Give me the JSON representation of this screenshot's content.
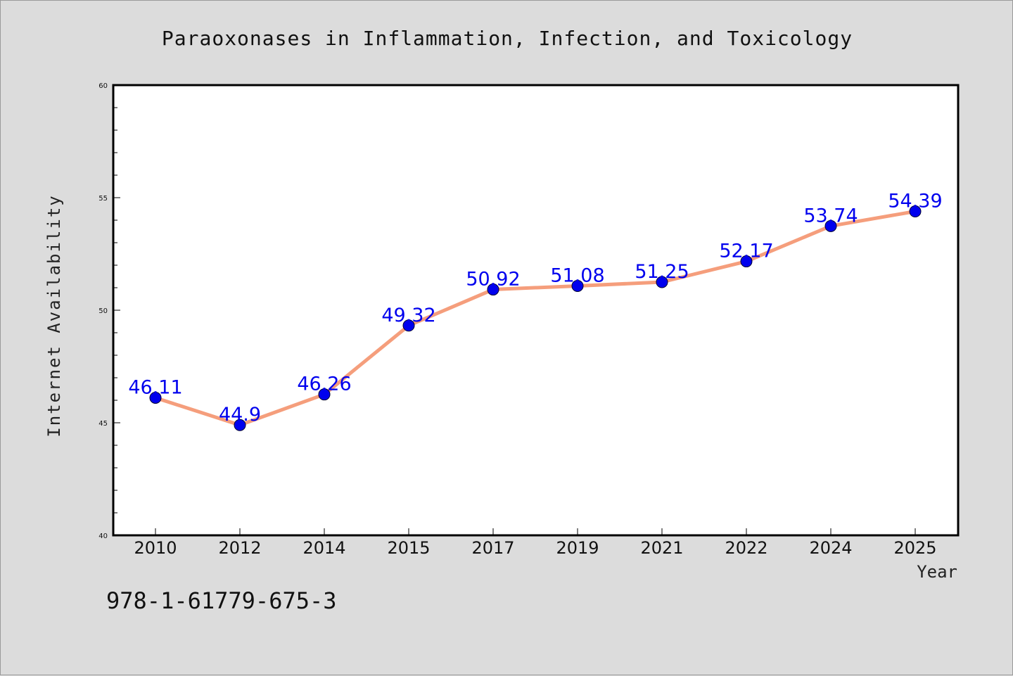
{
  "chart_data": {
    "type": "line",
    "title": "Paraoxonases in Inflammation, Infection, and Toxicology",
    "xlabel": "Year",
    "ylabel": "Internet Availability",
    "categories": [
      "2010",
      "2012",
      "2014",
      "2015",
      "2017",
      "2019",
      "2021",
      "2022",
      "2024",
      "2025"
    ],
    "series": [
      {
        "values": [
          46.11,
          44.9,
          46.26,
          49.32,
          50.92,
          51.08,
          51.25,
          52.17,
          53.74,
          54.39
        ],
        "labels": [
          "46.11",
          "44.9",
          "46.26",
          "49.32",
          "50.92",
          "51.08",
          "51.25",
          "52.17",
          "53.74",
          "54.39"
        ]
      }
    ],
    "ylim": [
      40,
      60
    ],
    "yticks": [
      "40",
      "45",
      "50",
      "55",
      "60"
    ],
    "grid": false,
    "footnote": "978-1-61779-675-3"
  },
  "colors": {
    "line": "#f59e7c",
    "marker": "#0000ee",
    "label": "#0000ee",
    "background": "#dcdcdc",
    "plot_area": "#ffffff"
  }
}
